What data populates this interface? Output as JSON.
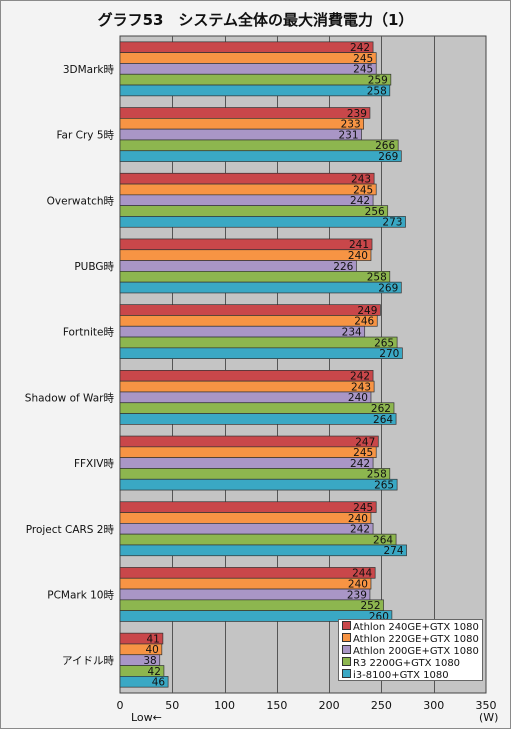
{
  "chart_data": {
    "type": "bar",
    "orientation": "horizontal",
    "title": "グラフ53　システム全体の最大消費電力（1）",
    "categories": [
      "3DMark時",
      "Far Cry 5時",
      "Overwatch時",
      "PUBG時",
      "Fortnite時",
      "Shadow of War時",
      "FFXIV時",
      "Project CARS 2時",
      "PCMark 10時",
      "アイドル時"
    ],
    "series": [
      {
        "name": "Athlon 240GE+GTX 1080",
        "color": "#c9474a",
        "values": [
          242,
          239,
          243,
          241,
          249,
          242,
          247,
          245,
          244,
          41
        ]
      },
      {
        "name": "Athlon 220GE+GTX 1080",
        "color": "#f79444",
        "values": [
          245,
          233,
          245,
          240,
          246,
          243,
          245,
          240,
          240,
          40
        ]
      },
      {
        "name": "Athlon 200GE+GTX 1080",
        "color": "#a996c6",
        "values": [
          245,
          231,
          242,
          226,
          234,
          240,
          242,
          242,
          239,
          38
        ]
      },
      {
        "name": "R3 2200G+GTX 1080",
        "color": "#8db64f",
        "values": [
          259,
          266,
          256,
          258,
          265,
          262,
          258,
          264,
          252,
          42
        ]
      },
      {
        "name": "i3-8100+GTX 1080",
        "color": "#3aa8c4",
        "values": [
          258,
          269,
          273,
          269,
          270,
          264,
          265,
          274,
          260,
          46
        ]
      }
    ],
    "xlim": [
      0,
      350
    ],
    "xticks": [
      0,
      50,
      100,
      150,
      200,
      250,
      300,
      350
    ],
    "xlabel": "(W)",
    "annotation": "Low←",
    "grid": true,
    "legend": "bottom-right"
  },
  "colors": {
    "plot_background": "#c4c4c4",
    "gridline": "#555555",
    "bar_outline": "#333333"
  }
}
